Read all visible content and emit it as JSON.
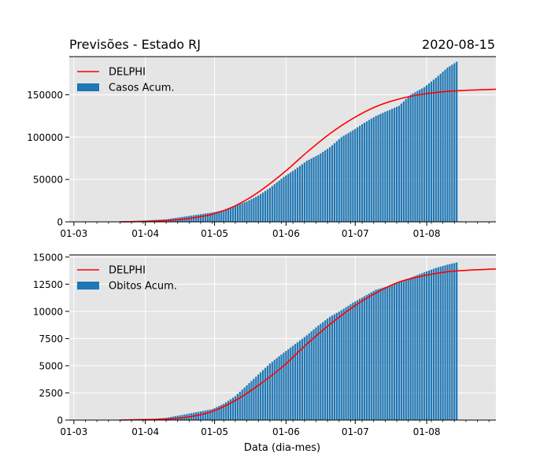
{
  "header": {
    "title": "Previsões - Estado RJ",
    "date": "2020-08-15"
  },
  "colors": {
    "bar": "#1f77b4",
    "line": "#ff0000",
    "panel_bg": "#e5e5e5",
    "grid": "#ffffff"
  },
  "chart_data": [
    {
      "type": "bar",
      "title": "Previsões - Estado RJ",
      "xlabel": "",
      "ylabel": "",
      "x_ticks": [
        "01-03",
        "01-04",
        "01-05",
        "01-06",
        "01-07",
        "01-08"
      ],
      "x_range": [
        "2020-02-28",
        "2020-08-31"
      ],
      "ylim": [
        0,
        195000
      ],
      "y_ticks": [
        0,
        50000,
        100000,
        150000
      ],
      "grid": true,
      "legend": "top-left",
      "series": [
        {
          "name": "Casos Acum.",
          "type": "bar",
          "x": [
            "2020-03-21",
            "2020-03-31",
            "2020-04-10",
            "2020-04-15",
            "2020-04-20",
            "2020-04-25",
            "2020-04-30",
            "2020-05-05",
            "2020-05-10",
            "2020-05-15",
            "2020-05-20",
            "2020-05-25",
            "2020-05-31",
            "2020-06-05",
            "2020-06-10",
            "2020-06-15",
            "2020-06-20",
            "2020-06-25",
            "2020-06-30",
            "2020-07-05",
            "2020-07-10",
            "2020-07-15",
            "2020-07-20",
            "2020-07-25",
            "2020-07-31",
            "2020-08-05",
            "2020-08-10",
            "2020-08-14"
          ],
          "values": [
            500,
            1500,
            3000,
            5000,
            7000,
            9000,
            11000,
            14000,
            19000,
            24000,
            31000,
            40000,
            53000,
            62000,
            72000,
            79000,
            88000,
            100000,
            108000,
            117000,
            125000,
            131000,
            137000,
            150000,
            159000,
            170000,
            182000,
            189000
          ]
        },
        {
          "name": "DELPHI",
          "type": "line",
          "x": [
            "2020-03-21",
            "2020-04-01",
            "2020-04-10",
            "2020-04-20",
            "2020-04-30",
            "2020-05-10",
            "2020-05-20",
            "2020-05-31",
            "2020-06-10",
            "2020-06-20",
            "2020-06-30",
            "2020-07-10",
            "2020-07-20",
            "2020-07-31",
            "2020-08-10",
            "2020-08-20",
            "2020-08-31"
          ],
          "values": [
            0,
            500,
            1500,
            4000,
            9000,
            19000,
            35000,
            58000,
            82000,
            104000,
            122000,
            136000,
            145000,
            151000,
            154000,
            155500,
            156500
          ]
        }
      ]
    },
    {
      "type": "bar",
      "title": "",
      "xlabel": "Data (dia-mes)",
      "ylabel": "",
      "x_ticks": [
        "01-03",
        "01-04",
        "01-05",
        "01-06",
        "01-07",
        "01-08"
      ],
      "x_range": [
        "2020-02-28",
        "2020-08-31"
      ],
      "ylim": [
        0,
        15200
      ],
      "y_ticks": [
        0,
        2500,
        5000,
        7500,
        10000,
        12500,
        15000
      ],
      "grid": true,
      "legend": "top-left",
      "series": [
        {
          "name": "Obitos Acum.",
          "type": "bar",
          "x": [
            "2020-03-21",
            "2020-03-31",
            "2020-04-10",
            "2020-04-15",
            "2020-04-20",
            "2020-04-25",
            "2020-04-30",
            "2020-05-05",
            "2020-05-10",
            "2020-05-15",
            "2020-05-20",
            "2020-05-25",
            "2020-05-31",
            "2020-06-05",
            "2020-06-10",
            "2020-06-15",
            "2020-06-20",
            "2020-06-25",
            "2020-06-30",
            "2020-07-05",
            "2020-07-10",
            "2020-07-15",
            "2020-07-20",
            "2020-07-25",
            "2020-07-31",
            "2020-08-05",
            "2020-08-10",
            "2020-08-14"
          ],
          "values": [
            10,
            50,
            200,
            400,
            600,
            800,
            1000,
            1500,
            2200,
            3200,
            4200,
            5200,
            6200,
            7000,
            7800,
            8700,
            9500,
            10100,
            10800,
            11400,
            12000,
            12300,
            12700,
            13100,
            13600,
            14000,
            14300,
            14500
          ]
        },
        {
          "name": "DELPHI",
          "type": "line",
          "x": [
            "2020-03-21",
            "2020-04-01",
            "2020-04-10",
            "2020-04-20",
            "2020-04-30",
            "2020-05-10",
            "2020-05-20",
            "2020-05-31",
            "2020-06-10",
            "2020-06-20",
            "2020-06-30",
            "2020-07-10",
            "2020-07-20",
            "2020-07-31",
            "2020-08-10",
            "2020-08-20",
            "2020-08-31"
          ],
          "values": [
            0,
            50,
            100,
            300,
            800,
            1800,
            3200,
            5000,
            7000,
            8800,
            10400,
            11700,
            12700,
            13300,
            13650,
            13800,
            13900
          ]
        }
      ]
    }
  ]
}
